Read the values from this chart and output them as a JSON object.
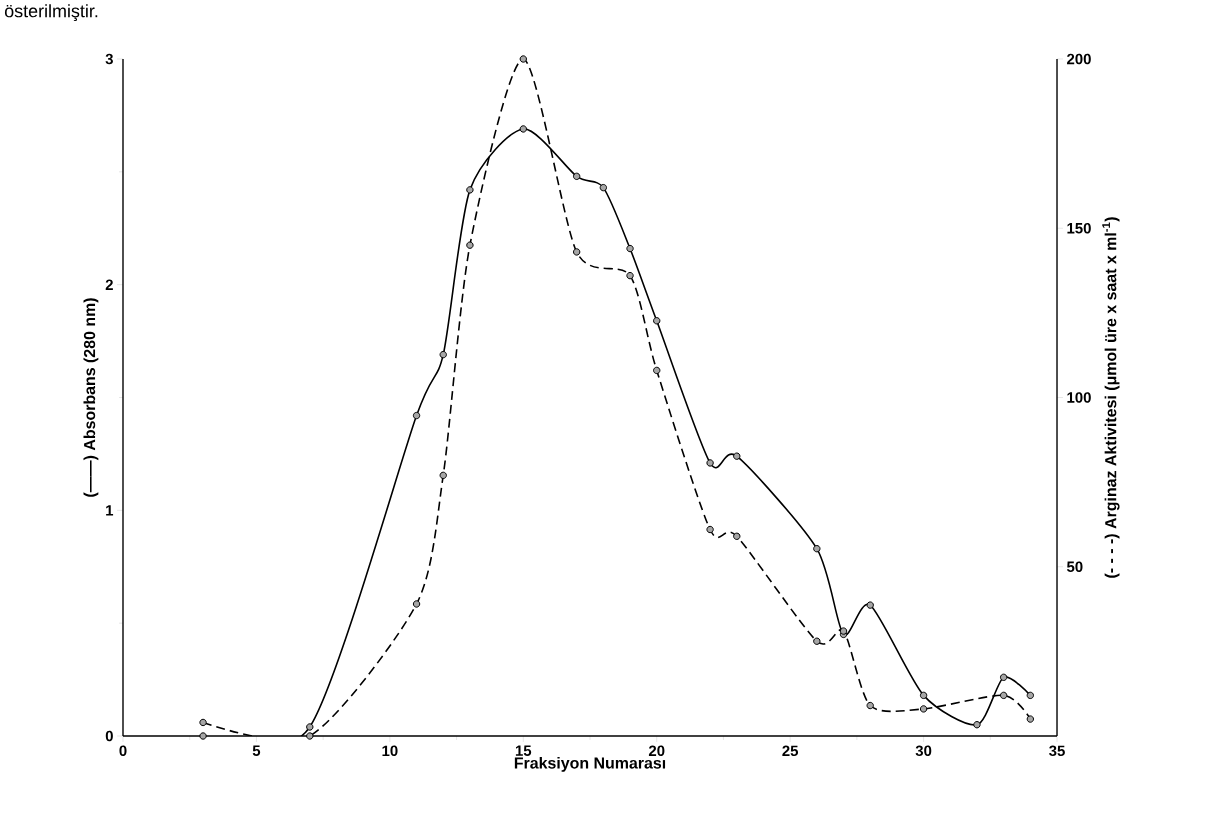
{
  "chart_data": {
    "type": "line",
    "annotations": [
      "österilmiştir."
    ],
    "xlabel": "Fraksiyon  Numarası",
    "ylabel": "(——) Absorbans (280 nm)",
    "y2label": "(- - - -) Arginaz Aktivitesi (μmol üre x saat x ml$^{-1}$)",
    "xlim": [
      0,
      35
    ],
    "xticks": [
      0,
      5,
      10,
      15,
      20,
      25,
      30,
      35
    ],
    "ylim": [
      0,
      3
    ],
    "yticks": [
      0,
      1,
      2,
      3
    ],
    "y2lim": [
      0,
      200
    ],
    "y2ticks": [
      50,
      100,
      150,
      200
    ],
    "marker": "circle",
    "series": [
      {
        "color": "#000000",
        "line_style": "solid",
        "x": [
          3,
          7,
          11,
          12,
          13,
          15,
          17,
          18,
          19,
          20,
          22,
          23,
          26,
          27,
          28,
          30,
          32,
          33,
          34
        ],
        "values": [
          0,
          0.04,
          1.42,
          1.69,
          2.42,
          2.69,
          2.48,
          2.43,
          2.16,
          1.84,
          1.21,
          1.24,
          0.83,
          0.45,
          0.58,
          0.18,
          0.05,
          0.26,
          0.18
        ]
      },
      {
        "color": "#000000",
        "line_style": "dashed",
        "axis": "y2",
        "x": [
          3,
          7,
          11,
          12,
          13,
          15,
          17,
          19,
          20,
          22,
          23,
          26,
          27,
          28,
          30,
          33,
          34
        ],
        "values": [
          4,
          0,
          39,
          77,
          145,
          200,
          143,
          136,
          108,
          61,
          59,
          28,
          31,
          9,
          8,
          12,
          5
        ]
      }
    ]
  }
}
